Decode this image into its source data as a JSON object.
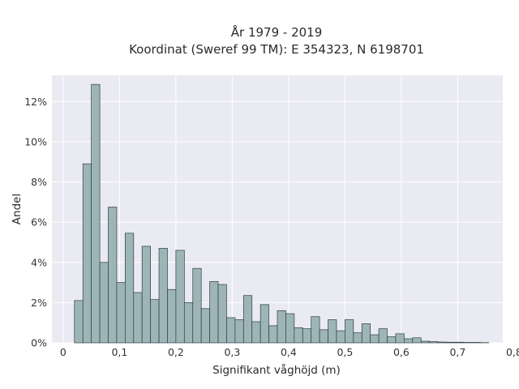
{
  "chart_data": {
    "type": "bar",
    "title_line1": "År 1979 - 2019",
    "title_line2": "Koordinat (Sweref 99 TM): E 354323, N 6198701",
    "xlabel": "Signifikant våghöjd (m)",
    "ylabel": "Andel",
    "xlim": [
      -0.02,
      0.78
    ],
    "ylim": [
      0,
      13.3
    ],
    "grid": true,
    "bar_color": "#9db5b7",
    "edge_color": "#2f3f3f",
    "plot_bg": "#eaeaf2",
    "x_ticks": [
      {
        "v": 0,
        "label": "0"
      },
      {
        "v": 0.1,
        "label": "0,1"
      },
      {
        "v": 0.2,
        "label": "0,2"
      },
      {
        "v": 0.3,
        "label": "0,3"
      },
      {
        "v": 0.4,
        "label": "0,4"
      },
      {
        "v": 0.5,
        "label": "0,5"
      },
      {
        "v": 0.6,
        "label": "0,6"
      },
      {
        "v": 0.7,
        "label": "0,7"
      },
      {
        "v": 0.8,
        "label": "0,8"
      }
    ],
    "y_ticks": [
      {
        "v": 0,
        "label": "0%"
      },
      {
        "v": 2,
        "label": "2%"
      },
      {
        "v": 4,
        "label": "4%"
      },
      {
        "v": 6,
        "label": "6%"
      },
      {
        "v": 8,
        "label": "8%"
      },
      {
        "v": 10,
        "label": "10%"
      },
      {
        "v": 12,
        "label": "12%"
      }
    ],
    "bin_start": 0.02,
    "bin_width": 0.015,
    "values": [
      2.1,
      8.9,
      12.85,
      4.0,
      6.75,
      3.0,
      5.45,
      2.5,
      4.8,
      2.15,
      4.7,
      2.65,
      4.6,
      2.0,
      3.7,
      1.7,
      3.05,
      2.9,
      1.25,
      1.15,
      2.35,
      1.05,
      1.9,
      0.85,
      1.6,
      1.45,
      0.75,
      0.7,
      1.3,
      0.65,
      1.15,
      0.6,
      1.15,
      0.5,
      0.95,
      0.4,
      0.7,
      0.3,
      0.45,
      0.2,
      0.25,
      0.08,
      0.06,
      0.04,
      0.03,
      0.03,
      0.02,
      0.02,
      0.01
    ]
  }
}
